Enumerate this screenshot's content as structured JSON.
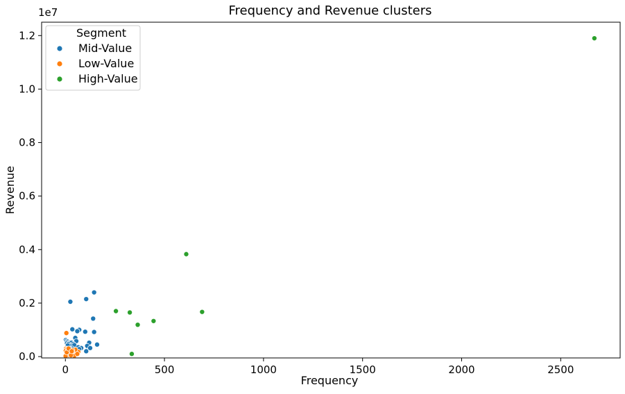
{
  "chart_data": {
    "type": "scatter",
    "title": "Frequency and Revenue clusters",
    "xlabel": "Frequency",
    "ylabel": "Revenue",
    "y_offset_label": "1e7",
    "xlim": [
      -120,
      2800
    ],
    "ylim": [
      -50000,
      12500000
    ],
    "x_ticks": [
      0,
      500,
      1000,
      1500,
      2000,
      2500
    ],
    "x_tick_labels": [
      "0",
      "500",
      "1000",
      "1500",
      "2000",
      "2500"
    ],
    "y_ticks": [
      0,
      2000000,
      4000000,
      6000000,
      8000000,
      10000000,
      12000000
    ],
    "y_tick_labels": [
      "0.0",
      "0.2",
      "0.4",
      "0.6",
      "0.8",
      "1.0",
      "1.2"
    ],
    "grid": false,
    "legend": {
      "title": "Segment",
      "placement": "top-left"
    },
    "series": [
      {
        "name": "Mid-Value",
        "color": "#1f77b4",
        "points": [
          [
            25,
            2050000
          ],
          [
            145,
            2400000
          ],
          [
            105,
            2150000
          ],
          [
            140,
            1420000
          ],
          [
            35,
            1020000
          ],
          [
            70,
            1000000
          ],
          [
            60,
            950000
          ],
          [
            100,
            930000
          ],
          [
            145,
            920000
          ],
          [
            2,
            620000
          ],
          [
            6,
            580000
          ],
          [
            12,
            560000
          ],
          [
            20,
            520000
          ],
          [
            30,
            520000
          ],
          [
            50,
            700000
          ],
          [
            55,
            580000
          ],
          [
            8,
            500000
          ],
          [
            15,
            470000
          ],
          [
            40,
            470000
          ],
          [
            120,
            520000
          ],
          [
            160,
            450000
          ],
          [
            25,
            400000
          ],
          [
            45,
            430000
          ],
          [
            65,
            350000
          ],
          [
            110,
            400000
          ],
          [
            125,
            320000
          ],
          [
            10,
            350000
          ],
          [
            35,
            300000
          ],
          [
            50,
            250000
          ],
          [
            105,
            200000
          ],
          [
            5,
            250000
          ],
          [
            80,
            320000
          ],
          [
            18,
            200000
          ],
          [
            42,
            150000
          ],
          [
            28,
            100000
          ],
          [
            60,
            120000
          ],
          [
            3,
            150000
          ],
          [
            12,
            420000
          ],
          [
            22,
            300000
          ],
          [
            70,
            280000
          ]
        ]
      },
      {
        "name": "Low-Value",
        "color": "#ff7f0e",
        "points": [
          [
            5,
            880000
          ],
          [
            3,
            300000
          ],
          [
            8,
            280000
          ],
          [
            2,
            220000
          ],
          [
            10,
            200000
          ],
          [
            15,
            180000
          ],
          [
            20,
            160000
          ],
          [
            25,
            150000
          ],
          [
            4,
            120000
          ],
          [
            6,
            90000
          ],
          [
            12,
            70000
          ],
          [
            18,
            60000
          ],
          [
            30,
            80000
          ],
          [
            40,
            140000
          ],
          [
            55,
            200000
          ],
          [
            65,
            180000
          ],
          [
            50,
            260000
          ],
          [
            35,
            240000
          ],
          [
            9,
            40000
          ],
          [
            1,
            20000
          ],
          [
            22,
            110000
          ],
          [
            14,
            230000
          ],
          [
            45,
            30000
          ],
          [
            28,
            50000
          ],
          [
            60,
            100000
          ],
          [
            7,
            160000
          ],
          [
            16,
            300000
          ],
          [
            32,
            200000
          ]
        ]
      },
      {
        "name": "High-Value",
        "color": "#2ca02c",
        "points": [
          [
            2670,
            11900000
          ],
          [
            610,
            3830000
          ],
          [
            255,
            1700000
          ],
          [
            325,
            1650000
          ],
          [
            690,
            1670000
          ],
          [
            445,
            1330000
          ],
          [
            365,
            1190000
          ],
          [
            335,
            100000
          ]
        ]
      }
    ]
  }
}
